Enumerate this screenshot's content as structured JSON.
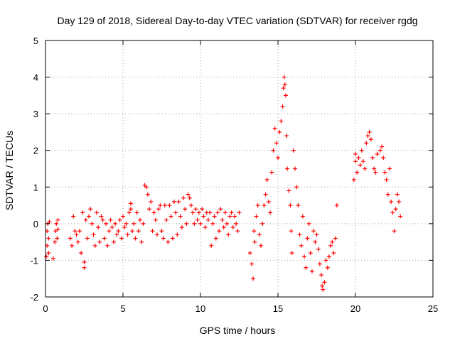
{
  "chart_data": {
    "type": "scatter",
    "title": "Day 129 of 2018, Sidereal Day-to-day VTEC variation (SDTVAR) for receiver rgdg",
    "xlabel": "GPS time / hours",
    "ylabel": "SDTVAR / TECUs",
    "xlim": [
      0,
      25
    ],
    "ylim": [
      -2,
      5
    ],
    "xticks": [
      0,
      5,
      10,
      15,
      20,
      25
    ],
    "yticks": [
      -2,
      -1,
      0,
      1,
      2,
      3,
      4,
      5
    ],
    "xtick_labels": [
      "0",
      "5",
      "10",
      "15",
      "20",
      "25"
    ],
    "ytick_labels": [
      "-2",
      "-1",
      "0",
      "1",
      "2",
      "3",
      "4",
      "5"
    ],
    "grid": true,
    "marker": "+",
    "series": [
      {
        "name": "SDTVAR",
        "color": "#ff0000",
        "points": [
          [
            0.05,
            -0.9
          ],
          [
            0.1,
            -0.6
          ],
          [
            0.1,
            -0.2
          ],
          [
            0.15,
            0.0
          ],
          [
            0.2,
            -0.4
          ],
          [
            0.2,
            -0.8
          ],
          [
            0.25,
            0.05
          ],
          [
            0.5,
            -0.95
          ],
          [
            0.6,
            -0.5
          ],
          [
            0.65,
            -0.2
          ],
          [
            0.7,
            0.0
          ],
          [
            0.75,
            -0.4
          ],
          [
            0.8,
            0.1
          ],
          [
            0.8,
            -0.15
          ],
          [
            1.6,
            -0.4
          ],
          [
            1.7,
            -0.6
          ],
          [
            1.8,
            0.2
          ],
          [
            1.9,
            -0.2
          ],
          [
            2.0,
            -0.3
          ],
          [
            2.1,
            -0.5
          ],
          [
            2.2,
            -0.2
          ],
          [
            2.3,
            -0.8
          ],
          [
            2.4,
            0.3
          ],
          [
            2.5,
            -1.2
          ],
          [
            2.5,
            -1.05
          ],
          [
            2.6,
            0.1
          ],
          [
            2.7,
            -0.4
          ],
          [
            2.8,
            0.2
          ],
          [
            2.9,
            0.4
          ],
          [
            3.0,
            0.0
          ],
          [
            3.1,
            -0.3
          ],
          [
            3.2,
            -0.6
          ],
          [
            3.3,
            0.3
          ],
          [
            3.4,
            -0.1
          ],
          [
            3.5,
            -0.5
          ],
          [
            3.6,
            0.2
          ],
          [
            3.7,
            0.1
          ],
          [
            3.8,
            -0.4
          ],
          [
            3.9,
            0.0
          ],
          [
            4.0,
            -0.6
          ],
          [
            4.1,
            -0.2
          ],
          [
            4.2,
            0.1
          ],
          [
            4.3,
            -0.1
          ],
          [
            4.4,
            -0.5
          ],
          [
            4.5,
            0.0
          ],
          [
            4.6,
            -0.3
          ],
          [
            4.7,
            -0.2
          ],
          [
            4.8,
            0.1
          ],
          [
            4.9,
            -0.4
          ],
          [
            5.0,
            0.2
          ],
          [
            5.1,
            -0.1
          ],
          [
            5.2,
            0.0
          ],
          [
            5.3,
            -0.3
          ],
          [
            5.4,
            0.3
          ],
          [
            5.5,
            0.4
          ],
          [
            5.5,
            0.55
          ],
          [
            5.6,
            -0.2
          ],
          [
            5.7,
            0.0
          ],
          [
            5.8,
            -0.4
          ],
          [
            5.9,
            0.3
          ],
          [
            6.0,
            -0.2
          ],
          [
            6.1,
            0.1
          ],
          [
            6.2,
            -0.5
          ],
          [
            6.3,
            0.0
          ],
          [
            6.4,
            1.05
          ],
          [
            6.5,
            1.0
          ],
          [
            6.6,
            0.8
          ],
          [
            6.7,
            0.4
          ],
          [
            6.8,
            0.6
          ],
          [
            6.9,
            -0.2
          ],
          [
            7.0,
            0.3
          ],
          [
            7.1,
            0.1
          ],
          [
            7.2,
            -0.3
          ],
          [
            7.3,
            0.4
          ],
          [
            7.4,
            0.5
          ],
          [
            7.5,
            -0.2
          ],
          [
            7.6,
            -0.4
          ],
          [
            7.7,
            0.5
          ],
          [
            7.8,
            0.1
          ],
          [
            7.9,
            -0.5
          ],
          [
            8.0,
            0.5
          ],
          [
            8.1,
            0.2
          ],
          [
            8.2,
            -0.4
          ],
          [
            8.3,
            0.6
          ],
          [
            8.4,
            0.3
          ],
          [
            8.5,
            -0.3
          ],
          [
            8.6,
            0.6
          ],
          [
            8.7,
            0.2
          ],
          [
            8.8,
            -0.1
          ],
          [
            8.9,
            0.7
          ],
          [
            9.0,
            0.4
          ],
          [
            9.1,
            0.0
          ],
          [
            9.2,
            0.8
          ],
          [
            9.3,
            0.7
          ],
          [
            9.4,
            0.5
          ],
          [
            9.5,
            0.3
          ],
          [
            9.6,
            0.0
          ],
          [
            9.7,
            0.4
          ],
          [
            9.8,
            0.1
          ],
          [
            9.9,
            0.3
          ],
          [
            10.0,
            0.0
          ],
          [
            10.1,
            0.4
          ],
          [
            10.2,
            0.2
          ],
          [
            10.3,
            -0.1
          ],
          [
            10.4,
            0.3
          ],
          [
            10.5,
            0.1
          ],
          [
            10.6,
            0.3
          ],
          [
            10.7,
            -0.6
          ],
          [
            10.8,
            0.0
          ],
          [
            10.9,
            0.2
          ],
          [
            11.0,
            -0.4
          ],
          [
            11.1,
            0.3
          ],
          [
            11.2,
            -0.2
          ],
          [
            11.3,
            0.4
          ],
          [
            11.4,
            0.1
          ],
          [
            11.5,
            -0.1
          ],
          [
            11.6,
            0.3
          ],
          [
            11.7,
            0.0
          ],
          [
            11.8,
            -0.3
          ],
          [
            11.9,
            0.2
          ],
          [
            12.0,
            0.3
          ],
          [
            12.1,
            -0.1
          ],
          [
            12.2,
            0.2
          ],
          [
            12.3,
            0.0
          ],
          [
            12.4,
            -0.2
          ],
          [
            12.5,
            0.3
          ],
          [
            13.2,
            -0.8
          ],
          [
            13.3,
            -1.1
          ],
          [
            13.4,
            -1.5
          ],
          [
            13.45,
            -0.2
          ],
          [
            13.5,
            -0.5
          ],
          [
            13.6,
            0.2
          ],
          [
            13.7,
            0.5
          ],
          [
            13.8,
            -0.3
          ],
          [
            13.9,
            -0.6
          ],
          [
            14.0,
            0.0
          ],
          [
            14.1,
            0.5
          ],
          [
            14.2,
            0.8
          ],
          [
            14.3,
            1.2
          ],
          [
            14.4,
            0.6
          ],
          [
            14.5,
            0.3
          ],
          [
            14.6,
            1.4
          ],
          [
            14.7,
            2.0
          ],
          [
            14.8,
            2.6
          ],
          [
            14.9,
            2.2
          ],
          [
            15.0,
            1.8
          ],
          [
            15.1,
            2.5
          ],
          [
            15.2,
            2.8
          ],
          [
            15.3,
            3.2
          ],
          [
            15.35,
            3.7
          ],
          [
            15.4,
            4.0
          ],
          [
            15.45,
            3.8
          ],
          [
            15.5,
            3.5
          ],
          [
            15.55,
            2.4
          ],
          [
            15.6,
            1.5
          ],
          [
            15.7,
            0.9
          ],
          [
            15.8,
            0.5
          ],
          [
            15.85,
            -0.2
          ],
          [
            15.9,
            -0.8
          ],
          [
            16.0,
            2.0
          ],
          [
            16.1,
            1.5
          ],
          [
            16.2,
            1.0
          ],
          [
            16.3,
            0.5
          ],
          [
            16.4,
            -0.3
          ],
          [
            16.5,
            -0.6
          ],
          [
            16.6,
            0.2
          ],
          [
            16.7,
            -0.9
          ],
          [
            16.8,
            -1.2
          ],
          [
            16.9,
            -0.4
          ],
          [
            17.0,
            0.0
          ],
          [
            17.1,
            -0.8
          ],
          [
            17.2,
            -1.3
          ],
          [
            17.3,
            -0.2
          ],
          [
            17.4,
            -0.5
          ],
          [
            17.5,
            -0.3
          ],
          [
            17.6,
            -0.7
          ],
          [
            17.7,
            -1.1
          ],
          [
            17.8,
            -1.4
          ],
          [
            17.85,
            -1.7
          ],
          [
            17.9,
            -1.8
          ],
          [
            18.0,
            -1.6
          ],
          [
            18.1,
            -1.0
          ],
          [
            18.2,
            -1.2
          ],
          [
            18.3,
            -0.9
          ],
          [
            18.4,
            -0.6
          ],
          [
            18.5,
            -0.5
          ],
          [
            18.6,
            -0.8
          ],
          [
            18.7,
            -0.4
          ],
          [
            18.8,
            0.5
          ],
          [
            19.9,
            1.2
          ],
          [
            20.0,
            1.7
          ],
          [
            20.0,
            1.9
          ],
          [
            20.1,
            1.4
          ],
          [
            20.2,
            1.8
          ],
          [
            20.3,
            1.6
          ],
          [
            20.4,
            2.0
          ],
          [
            20.5,
            1.7
          ],
          [
            20.6,
            1.5
          ],
          [
            20.7,
            2.2
          ],
          [
            20.8,
            2.4
          ],
          [
            20.9,
            2.5
          ],
          [
            21.0,
            2.3
          ],
          [
            21.1,
            1.8
          ],
          [
            21.2,
            1.5
          ],
          [
            21.3,
            1.4
          ],
          [
            21.4,
            1.9
          ],
          [
            21.6,
            2.0
          ],
          [
            21.7,
            2.1
          ],
          [
            21.8,
            1.8
          ],
          [
            21.9,
            1.4
          ],
          [
            22.0,
            1.2
          ],
          [
            22.1,
            0.8
          ],
          [
            22.2,
            1.5
          ],
          [
            22.3,
            0.6
          ],
          [
            22.4,
            0.3
          ],
          [
            22.5,
            -0.2
          ],
          [
            22.6,
            0.4
          ],
          [
            22.7,
            0.8
          ],
          [
            22.8,
            0.6
          ],
          [
            22.9,
            0.2
          ]
        ]
      }
    ]
  }
}
